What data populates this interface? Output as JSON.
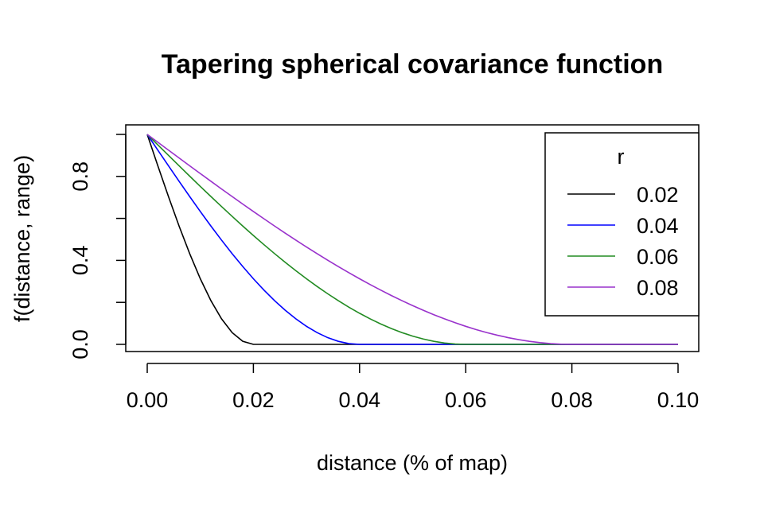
{
  "chart_data": {
    "type": "line",
    "title": "Tapering spherical covariance function",
    "xlabel": "distance (% of map)",
    "ylabel": "f(distance, range)",
    "xlim": [
      0,
      0.1
    ],
    "ylim": [
      0,
      1
    ],
    "x_ticks": [
      "0.00",
      "0.02",
      "0.04",
      "0.06",
      "0.08",
      "0.10"
    ],
    "x_tick_values": [
      0,
      0.02,
      0.04,
      0.06,
      0.08,
      0.1
    ],
    "y_ticks": [
      "0.0",
      "0.4",
      "0.8"
    ],
    "y_tick_values": [
      0,
      0.4,
      0.8
    ],
    "y_minor_tick_values": [
      0.2,
      0.6,
      1.0
    ],
    "grid": false,
    "legend": {
      "title": "r",
      "placement": "top-right",
      "entries": [
        {
          "label": "0.02",
          "color": "#000000"
        },
        {
          "label": "0.04",
          "color": "#0000ff"
        },
        {
          "label": "0.06",
          "color": "#228b22"
        },
        {
          "label": "0.08",
          "color": "#9932cc"
        }
      ]
    },
    "series": [
      {
        "name": "0.02",
        "color": "#000000",
        "range": 0.02
      },
      {
        "name": "0.04",
        "color": "#0000ff",
        "range": 0.04
      },
      {
        "name": "0.06",
        "color": "#228b22",
        "range": 0.06
      },
      {
        "name": "0.08",
        "color": "#9932cc",
        "range": 0.08
      }
    ],
    "x_samples": 51
  }
}
